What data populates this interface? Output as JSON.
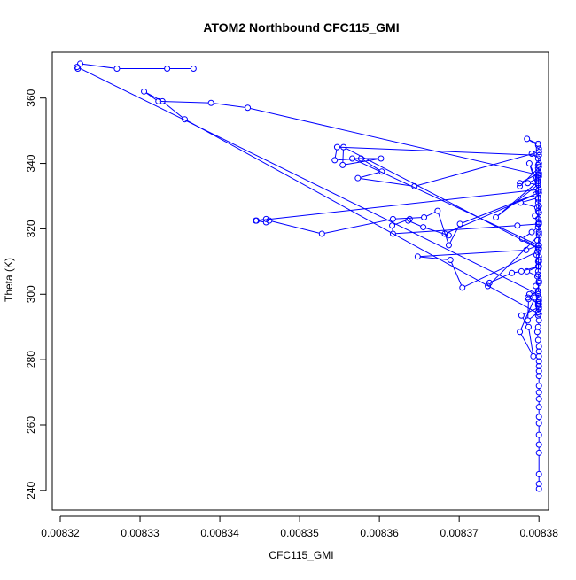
{
  "chart_data": {
    "type": "line",
    "title": "ATOM2 Northbound CFC115_GMI",
    "xlabel": "CFC115_GMI",
    "ylabel": "Theta (K)",
    "xlim": [
      0.008319,
      0.0083812
    ],
    "ylim": [
      234,
      374
    ],
    "x_ticks": [
      0.00832,
      0.00833,
      0.00834,
      0.00835,
      0.00836,
      0.00837,
      0.00838
    ],
    "x_tick_labels": [
      "0.00832",
      "0.00833",
      "0.00834",
      "0.00835",
      "0.00836",
      "0.00837",
      "0.00838"
    ],
    "y_ticks": [
      240,
      260,
      280,
      300,
      320,
      340,
      360
    ],
    "y_tick_labels": [
      "240",
      "260",
      "280",
      "300",
      "320",
      "340",
      "360"
    ],
    "grid": false,
    "colors": {
      "series": "#0000ff",
      "axes": "#000000",
      "background": "#ffffff"
    },
    "series": [
      {
        "marker": "open-circle",
        "x": [
          0.00838,
          0.00838,
          0.00838,
          0.00838,
          0.00838,
          0.00838,
          0.00838,
          0.00838,
          0.00838,
          0.00838,
          0.00838,
          0.00838,
          0.00838,
          0.00838,
          0.00838,
          0.00838,
          0.00838,
          0.00838,
          0.00838,
          0.0083799,
          0.0083798,
          0.0083799,
          0.00838,
          0.0083799,
          0.00838,
          0.0083799,
          0.0083795,
          0.0083776,
          0.0083793,
          0.0083787,
          0.0083778,
          0.00838,
          0.0083799,
          0.00838,
          0.0083799,
          0.0083796,
          0.00838,
          0.0083798,
          0.0083785,
          0.00838,
          0.0083799,
          0.00838,
          0.0083798,
          0.0083704,
          0.0083689,
          0.0083648,
          0.0083784,
          0.00838,
          0.0083798,
          0.00838,
          0.0083736,
          0.0083738,
          0.0083766,
          0.0083778,
          0.0083799,
          0.00838,
          0.0083797,
          0.00838,
          0.0083779,
          0.0083791,
          0.0083799,
          0.00838,
          0.0083795,
          0.0083799,
          0.00838,
          0.0083799,
          0.0083796,
          0.0083682,
          0.0083687,
          0.0083655,
          0.0083636,
          0.0083638,
          0.0083616,
          0.0083617,
          0.0083773,
          0.00838,
          0.0083799,
          0.00838,
          0.0083798,
          0.0083777,
          0.0083799,
          0.00838,
          0.0083701,
          0.0083687,
          0.0083673,
          0.0083656,
          0.0083617,
          0.0083528,
          0.0083462,
          0.0083458,
          0.0083445,
          0.0083458,
          0.0083446,
          0.00838,
          0.0083799,
          0.0083746,
          0.0083799,
          0.00838,
          0.0083799,
          0.00838,
          0.0083799,
          0.0083786,
          0.0083799,
          0.00838,
          0.0083776,
          0.0083776,
          0.0083799,
          0.00838,
          0.0083799,
          0.0083791,
          0.00838,
          0.0083799,
          0.0083785,
          0.0083799,
          0.00838,
          0.0083644,
          0.0083573,
          0.0083603,
          0.0083577,
          0.0083544,
          0.0083547,
          0.00838,
          0.0083799,
          0.00838,
          0.0083799,
          0.0083788,
          0.0083799,
          0.0083799,
          0.00838,
          0.0083799,
          0.00838,
          0.0083799,
          0.0083566,
          0.0083602,
          0.0083554,
          0.0083555,
          0.0083799,
          0.00838,
          0.0083799,
          0.00838,
          0.0083799,
          0.0083786,
          0.00838,
          0.0083799,
          0.0083786,
          0.0083787,
          0.0083788,
          0.0083799,
          0.00838,
          0.0083799,
          0.00838,
          0.0083356,
          0.0083328,
          0.0083305,
          0.0083323,
          0.0083389,
          0.0083435,
          0.0083799,
          0.00838,
          0.0083799,
          0.00838,
          0.0083799,
          0.0083221,
          0.0083222,
          0.0083225,
          0.0083271,
          0.0083334,
          0.0083367
        ],
        "y": [
          240.5,
          242,
          245,
          251.5,
          254,
          257,
          260.5,
          262.5,
          265.5,
          268,
          270,
          272,
          275,
          276.5,
          278,
          279.5,
          281,
          282.5,
          284,
          286,
          288.5,
          290,
          292,
          293.5,
          295.5,
          297,
          299,
          288.5,
          281,
          290,
          293.5,
          296,
          297.5,
          299,
          300.5,
          302.5,
          304,
          305.5,
          307,
          308.5,
          310,
          311.5,
          313,
          302,
          310.5,
          311.5,
          313.5,
          315,
          316.5,
          318,
          302.5,
          303.5,
          306.5,
          307,
          308.5,
          310,
          312,
          314,
          317,
          319,
          320.5,
          322,
          324,
          325.5,
          327,
          329,
          330.5,
          318.5,
          318,
          320.5,
          322.5,
          323,
          321,
          318.5,
          321,
          321.5,
          323,
          325,
          326.5,
          328,
          329.5,
          331,
          321.5,
          315,
          325.5,
          323.5,
          323,
          318.5,
          322.5,
          323,
          322.5,
          322,
          322.5,
          332,
          333.5,
          323.5,
          334.5,
          336,
          337.5,
          339,
          333.5,
          334,
          335.5,
          337,
          334,
          333,
          338.5,
          340,
          341.5,
          343,
          344.5,
          346,
          347.5,
          345.5,
          343.5,
          333,
          335.5,
          337.5,
          341.5,
          341,
          345,
          342.5,
          339.5,
          336.5,
          334,
          340,
          331.5,
          328,
          325,
          321.5,
          318.5,
          315,
          341.5,
          341.5,
          339.5,
          345,
          314,
          310.5,
          307,
          304,
          301,
          299,
          297,
          294.5,
          292,
          298.5,
          300,
          300.5,
          298,
          296.5,
          294,
          353.5,
          359,
          362,
          359,
          358.5,
          357,
          336.5,
          319,
          306,
          303.5,
          300,
          369.5,
          369,
          370.5,
          369,
          369,
          369
        ]
      }
    ]
  }
}
